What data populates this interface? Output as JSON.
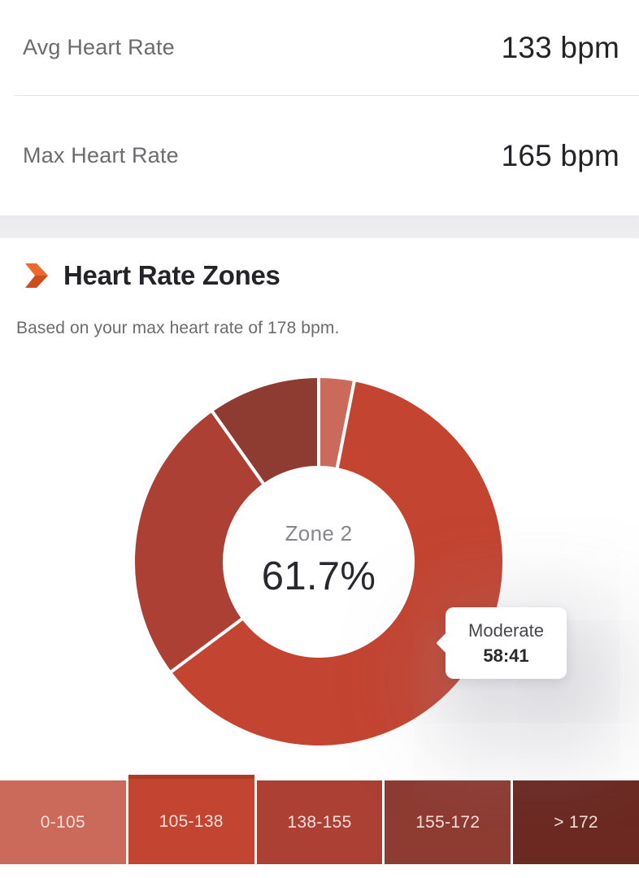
{
  "stats": {
    "rows": [
      {
        "label": "Avg Heart Rate",
        "value": "133 bpm"
      },
      {
        "label": "Max Heart Rate",
        "value": "165 bpm"
      }
    ]
  },
  "section": {
    "title": "Heart Rate Zones",
    "subtitle": "Based on your max heart rate of 178 bpm.",
    "accent_color_top": "#ec682b",
    "accent_color_bottom": "#cb4f1e"
  },
  "chart_data": {
    "type": "pie",
    "style": "donut",
    "direction": "clockwise",
    "start_angle_deg_from_12": 0,
    "outer_radius_px": 228,
    "inner_radius_px": 116,
    "gap_color": "#ffffff",
    "center_label": {
      "zone": "Zone 2",
      "percent": "61.7%"
    },
    "tooltip": {
      "label": "Moderate",
      "time": "58:41"
    },
    "segments": [
      {
        "zone": "Zone 1",
        "range": "0-105",
        "percent": 3.1,
        "color": "#cb695a",
        "selected": false
      },
      {
        "zone": "Zone 2",
        "range": "105-138",
        "percent": 61.7,
        "color": "#c34431",
        "selected": true
      },
      {
        "zone": "Zone 3",
        "range": "138-155",
        "percent": 25.4,
        "color": "#ad4035",
        "selected": false
      },
      {
        "zone": "Zone 4",
        "range": "155-172",
        "percent": 9.8,
        "color": "#8e3b32",
        "selected": false
      },
      {
        "zone": "Zone 5",
        "range": "> 172",
        "percent": 0,
        "color": "#6b2921",
        "selected": false
      }
    ]
  },
  "legend": {
    "selected_top_color": "#ac3b29",
    "text_color": "#f2dfd9"
  }
}
